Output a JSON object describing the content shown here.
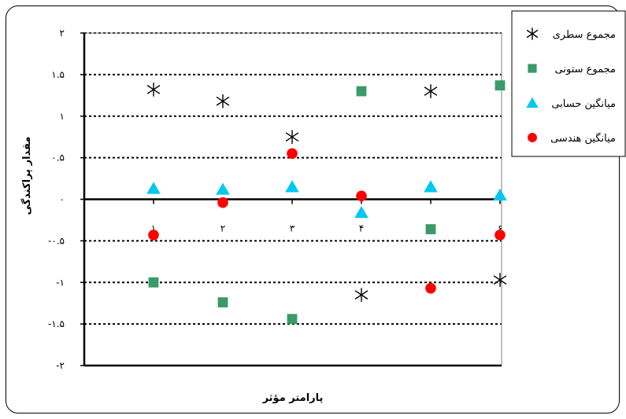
{
  "chart_data": {
    "type": "scatter",
    "xlabel": "پارامتر مؤثر",
    "ylabel": "مقدار پراکندگی",
    "xlim": [
      0,
      6
    ],
    "ylim": [
      -2,
      2
    ],
    "grid": true,
    "legend": "top-right",
    "x_tick_labels": [
      "۱",
      "۲",
      "۳",
      "۴",
      "۵",
      "۶"
    ],
    "y_ticks": [
      {
        "value": 2,
        "label": "۲"
      },
      {
        "value": 1.5,
        "label": "۱.۵"
      },
      {
        "value": 1,
        "label": "۱"
      },
      {
        "value": 0.5,
        "label": "۰.۵"
      },
      {
        "value": 0,
        "label": "۰"
      },
      {
        "value": -0.5,
        "label": "-۰.۵"
      },
      {
        "value": -1,
        "label": "-۱"
      },
      {
        "value": -1.5,
        "label": "-۱.۵"
      },
      {
        "value": -2,
        "label": "-۲"
      }
    ],
    "series": [
      {
        "name": "مجموع سطری",
        "marker": "asterisk",
        "color": "#000000",
        "points": [
          [
            1,
            1.32
          ],
          [
            2,
            1.18
          ],
          [
            3,
            0.75
          ],
          [
            4,
            -1.15
          ],
          [
            5,
            1.3
          ],
          [
            6,
            -0.97
          ]
        ]
      },
      {
        "name": "مجموع ستونی",
        "marker": "square",
        "color": "#3a9a68",
        "points": [
          [
            1,
            -1.0
          ],
          [
            2,
            -1.24
          ],
          [
            3,
            -1.44
          ],
          [
            4,
            1.3
          ],
          [
            5,
            -0.36
          ],
          [
            6,
            1.37
          ]
        ]
      },
      {
        "name": "میانگین حسابی",
        "marker": "triangle",
        "color": "#00c8f0",
        "points": [
          [
            1,
            0.13
          ],
          [
            2,
            0.12
          ],
          [
            3,
            0.15
          ],
          [
            4,
            -0.16
          ],
          [
            5,
            0.15
          ],
          [
            6,
            0.05
          ]
        ]
      },
      {
        "name": "میانگین هندسی",
        "marker": "circle",
        "color": "#ff0000",
        "points": [
          [
            1,
            -0.43
          ],
          [
            2,
            -0.04
          ],
          [
            3,
            0.55
          ],
          [
            4,
            0.04
          ],
          [
            5,
            -1.07
          ],
          [
            6,
            -0.43
          ]
        ]
      }
    ]
  }
}
